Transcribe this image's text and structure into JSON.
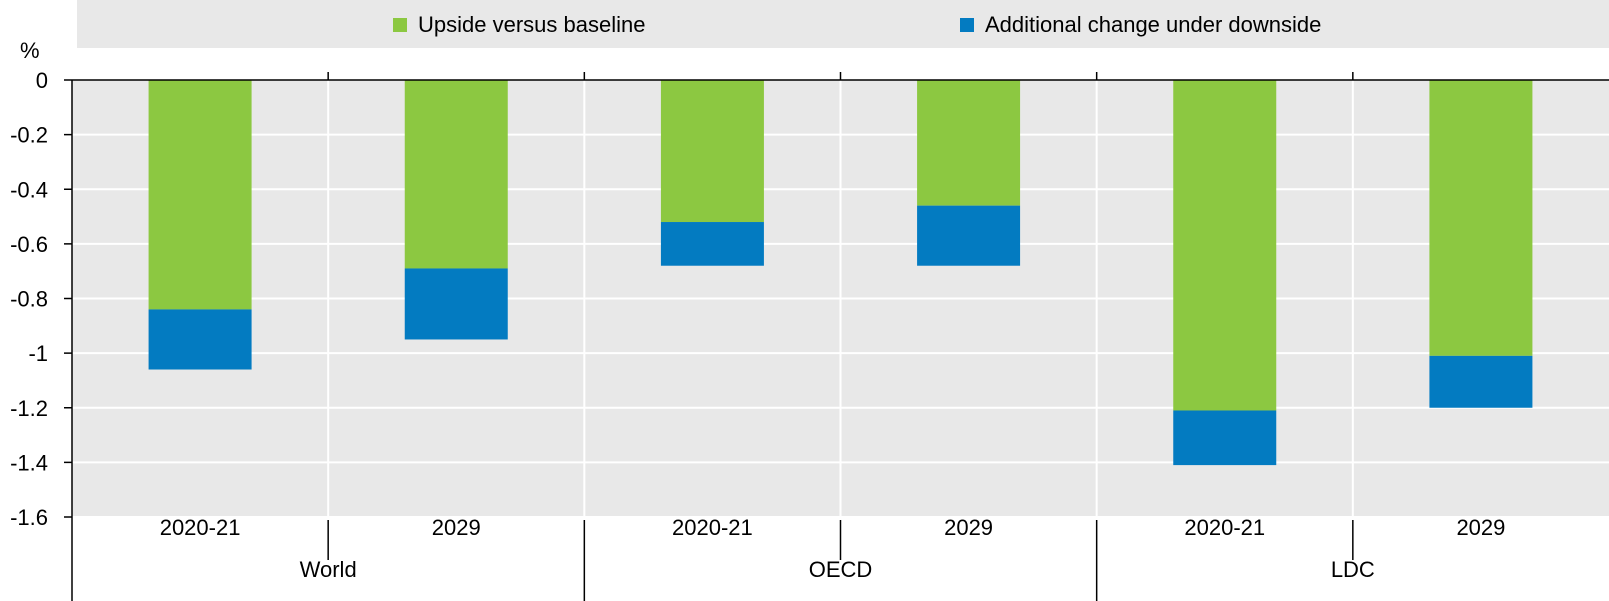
{
  "chart_data": {
    "type": "bar",
    "stacked": true,
    "unit_label": "%",
    "groups": [
      "World",
      "OECD",
      "LDC"
    ],
    "categories": [
      "2020-21",
      "2029",
      "2020-21",
      "2029",
      "2020-21",
      "2029"
    ],
    "series": [
      {
        "name": "Upside versus baseline",
        "values": [
          -0.84,
          -0.69,
          -0.52,
          -0.46,
          -1.21,
          -1.01
        ],
        "color": "#8cc841"
      },
      {
        "name": "Additional change under downside",
        "values": [
          -0.22,
          -0.26,
          -0.16,
          -0.22,
          -0.2,
          -0.19
        ],
        "color": "#037bc1"
      }
    ],
    "ylim": [
      -1.6,
      0
    ],
    "yticks": [
      "0",
      "-0.2",
      "-0.4",
      "-0.6",
      "-0.8",
      "-1",
      "-1.2",
      "-1.4",
      "-1.6"
    ],
    "grid": true,
    "legend_position": "top",
    "plot_background": "#e8e8e8"
  }
}
